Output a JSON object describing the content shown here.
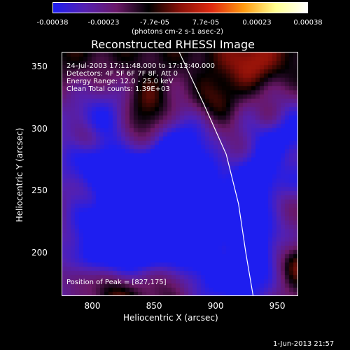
{
  "colorbar": {
    "ticks": [
      "-0.00038",
      "-0.00023",
      "-7.7e-05",
      "7.7e-05",
      "0.00023",
      "0.00038"
    ],
    "units": "(photons cm-2 s-1 asec-2)",
    "colors": [
      "#1e1ef0",
      "#5520b0",
      "#6a1868",
      "#000000",
      "#8a1008",
      "#e02a10",
      "#ff9a10",
      "#ffff90",
      "#ffffff"
    ]
  },
  "chart_data": {
    "type": "heatmap",
    "title": "Reconstructed RHESSI Image",
    "xlabel": "Heliocentric X (arcsec)",
    "ylabel": "Heliocentric Y (arcsec)",
    "xlim": [
      775,
      967
    ],
    "ylim": [
      165,
      362
    ],
    "xticks": [
      800,
      850,
      900,
      950
    ],
    "yticks": [
      200,
      250,
      300,
      350
    ],
    "annotations": [
      "24-Jul-2003 17:11:48.000 to 17:13:40.000",
      "Detectors: 4F 5F 6F 7F 8F, Att 0",
      "Energy Range: 12.0 - 25.0 keV",
      "Clean    Total counts: 1.39E+03",
      "Position of Peak = [827,175]"
    ],
    "limb": [
      [
        870,
        362
      ],
      [
        890,
        320
      ],
      [
        908,
        280
      ],
      [
        918,
        240
      ],
      [
        924,
        200
      ],
      [
        930,
        165
      ]
    ]
  },
  "footer": {
    "date": "1-Jun-2013 21:57"
  }
}
